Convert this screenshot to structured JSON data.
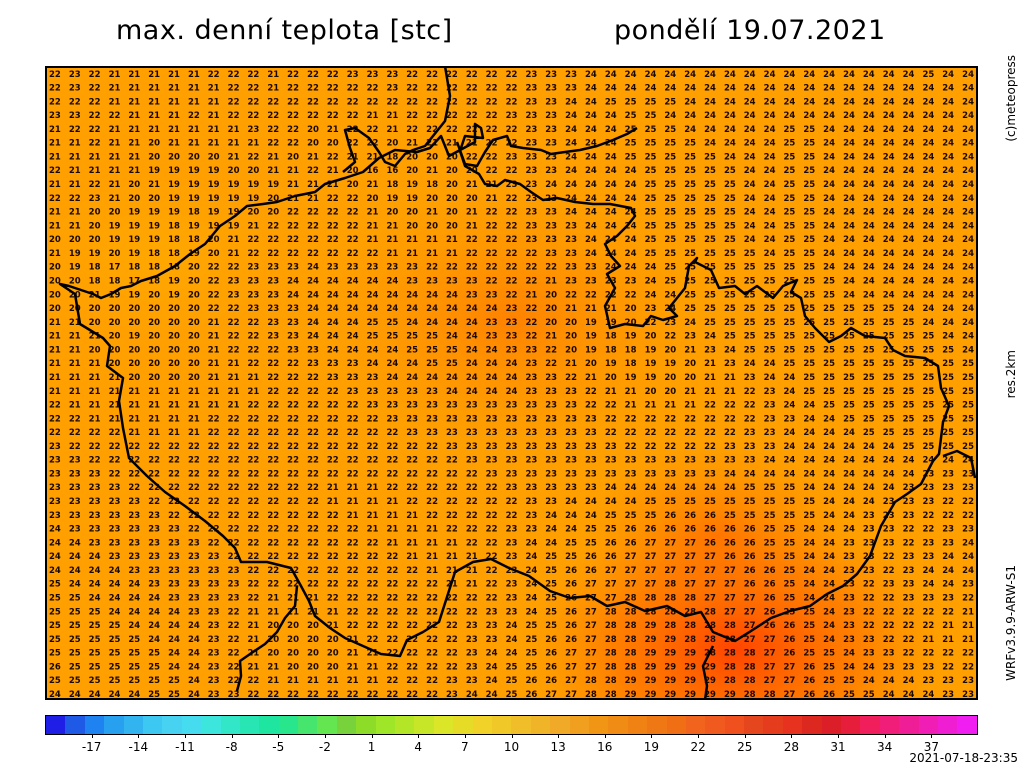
{
  "header": {
    "title": "max. denní teplota [stc]",
    "date": "pondělí 19.07.2021"
  },
  "side_labels": {
    "copyright": "(c)meteopress",
    "resolution": "res.2km",
    "model": "WRFv3.9.9-ARW-S1"
  },
  "footer": {
    "run_timestamp": "2021-07-18-23:35"
  },
  "colors": {
    "base_field": "#ff9f00",
    "hot_field": "#ff4a00",
    "border_line": "#000000"
  },
  "colorbar": {
    "tick_labels": [
      "-17",
      "-14",
      "-11",
      "-8",
      "-5",
      "-2",
      "1",
      "4",
      "7",
      "10",
      "13",
      "16",
      "19",
      "22",
      "25",
      "28",
      "31",
      "34",
      "37"
    ],
    "range": [
      -20,
      40
    ],
    "colors": [
      "#1e1ee6",
      "#1e5ae6",
      "#1e82f0",
      "#28a0f0",
      "#32b4f0",
      "#3cc8f0",
      "#46d2f0",
      "#46dcf0",
      "#3ce6dc",
      "#32e6c8",
      "#28e6b4",
      "#1ee6a0",
      "#28e68c",
      "#46e66e",
      "#64e650",
      "#78d23c",
      "#8cdc28",
      "#a0e628",
      "#b4e628",
      "#c8e628",
      "#dce628",
      "#e6dc28",
      "#f0d228",
      "#f0c828",
      "#f0be28",
      "#f0b428",
      "#f0aa28",
      "#f0a01e",
      "#f09614",
      "#f08c14",
      "#f08214",
      "#f07814",
      "#f06e14",
      "#f0641e",
      "#f05a1e",
      "#f0501e",
      "#e6461e",
      "#e63c1e",
      "#e6321e",
      "#dc281e",
      "#dc1e28",
      "#e61e3c",
      "#f01e5a",
      "#f01e78",
      "#f01e96",
      "#f01eb4",
      "#f01ed2",
      "#f01ef0"
    ]
  },
  "map_data": {
    "type": "temperature_grid",
    "unit": "stc",
    "rows": [
      "22 23 22 21 21 21 21 21 22 22 22 21 22 22 22 23 23 23 22 22 22 22 22 22 23 23 23 24 24 24 24 24 24 24 24 24 24 24 24 24 24 24 24 24 25 24 24",
      "22 23 22 21 21 21 21 21 21 22 22 21 22 22 22 22 22 23 22 22 22 22 22 22 23 23 23 24 24 24 24 24 24 24 24 24 24 24 24 24 24 24 24 24 24 24 24",
      "22 22 22 21 21 21 21 21 21 22 22 22 22 22 22 22 22 22 22 22 22 22 22 22 23 23 24 24 25 25 25 25 24 24 24 24 24 24 24 24 24 24 24 24 24 24 24",
      "23 23 22 22 21 21 21 22 21 22 22 22 22 22 22 22 21 21 22 22 22 22 22 23 23 23 24 24 24 25 25 24 24 24 24 24 24 24 24 24 24 24 24 24 24 24 24",
      "21 22 22 21 21 21 21 21 21 21 23 22 22 20 21 22 22 21 22 22 22 22 22 22 23 23 24 24 24 25 25 25 24 24 24 24 24 25 25 24 24 24 24 24 24 24 24",
      "21 21 22 21 21 20 21 21 21 21 21 22 22 20 20 22 22 20 21 21 21 21 22 22 23 23 24 24 24 25 25 25 25 24 24 24 24 25 25 24 24 24 24 24 24 24 24",
      "21 21 21 21 21 20 20 20 20 21 22 21 20 21 22 21 21 18 20 20 20 22 22 23 23 23 24 24 24 25 25 25 25 25 24 24 24 25 25 24 24 24 24 24 24 24 24",
      "22 21 21 21 21 19 19 19 19 20 20 21 21 22 21 20 16 16 20 21 20 20 22 22 23 23 24 24 24 24 25 25 25 25 25 24 24 25 25 24 24 24 24 24 24 24 24",
      "21 21 22 21 20 21 19 19 19 19 19 19 21 21 21 20 21 18 19 18 20 21 21 23 23 24 24 24 24 24 25 25 25 25 25 24 24 25 25 24 24 24 24 24 24 24 24",
      "22 22 23 21 20 20 19 19 19 19 19 20 21 21 22 22 20 19 19 20 20 20 21 22 23 23 24 24 24 24 25 25 25 25 25 24 24 25 25 24 24 24 24 24 24 24 24",
      "21 21 20 20 19 19 19 18 19 19 20 20 22 22 22 22 21 20 20 21 20 21 22 22 23 23 24 24 24 24 25 25 25 25 25 24 24 25 25 24 24 24 24 24 24 24 24",
      "21 21 20 19 19 19 18 19 19 19 21 22 22 22 22 22 21 21 20 20 20 21 22 22 23 23 23 24 24 24 25 25 25 25 25 24 24 25 25 24 24 24 24 24 24 24 24",
      "20 20 20 19 19 19 18 18 20 21 22 22 22 22 22 22 21 21 21 21 21 22 22 22 23 23 23 24 24 24 25 25 25 25 25 24 24 25 25 24 24 24 24 24 24 24 24",
      "21 19 19 20 19 18 18 19 20 21 22 22 22 22 22 22 22 21 21 21 21 22 22 22 22 23 23 24 24 24 25 25 25 25 25 25 24 25 25 24 24 24 24 24 24 24 24",
      "20 19 18 17 18 18 18 20 22 22 23 23 23 24 23 23 23 23 23 22 22 22 22 22 22 22 23 23 24 24 24 25 25 25 25 25 25 25 25 24 24 24 24 24 24 24 24",
      "20 20 18 18 17 18 19 20 22 23 23 23 24 24 24 24 24 24 23 23 23 23 22 22 22 21 23 23 23 23 24 25 25 25 25 25 25 25 25 25 24 24 24 24 24 24 24",
      "20 20 21 19 19 20 19 20 22 23 23 23 24 24 24 24 24 24 24 24 24 23 23 22 21 20 22 22 22 22 24 24 25 25 25 25 25 25 25 25 24 24 24 24 24 24 24",
      "20 20 20 20 20 20 20 20 22 22 23 23 23 24 24 24 24 24 24 24 24 24 24 23 22 20 21 21 21 20 23 24 25 25 25 25 25 25 25 25 25 25 25 24 24 24 24",
      "21 21 20 20 20 20 20 20 21 22 22 23 23 24 24 24 25 25 24 24 24 24 23 23 22 20 20 19 19 20 22 23 24 25 25 25 25 25 25 25 25 25 25 25 24 24 24",
      "21 21 21 20 19 20 20 20 21 22 22 23 23 24 24 24 25 25 25 25 24 24 23 23 22 21 20 19 18 19 20 22 23 24 25 25 25 25 25 25 25 25 25 25 25 24 24",
      "21 21 20 20 20 20 20 20 21 22 22 22 23 23 24 24 24 24 25 25 25 24 24 23 23 22 20 19 18 18 19 20 21 23 24 25 25 25 25 25 25 25 25 25 25 25 24",
      "21 21 21 20 20 20 20 20 21 21 22 22 22 23 23 23 24 24 24 25 25 24 24 24 23 22 21 20 19 18 19 19 20 21 23 24 24 25 25 25 25 25 25 25 25 25 25",
      "21 21 21 21 20 20 20 20 21 21 21 22 22 22 23 23 23 24 24 24 24 24 24 24 23 23 22 21 20 19 19 20 20 21 21 23 24 24 25 25 25 25 25 25 25 25 25",
      "21 21 21 21 21 21 21 21 21 21 21 22 22 22 22 23 23 23 23 23 24 24 24 24 23 23 23 22 21 21 20 20 21 21 21 22 23 24 25 25 25 25 25 25 25 25 25",
      "22 21 21 21 21 21 21 21 21 21 22 22 22 22 22 22 23 23 23 23 23 23 23 23 23 23 23 22 22 21 21 21 21 22 22 22 23 24 24 25 25 25 25 25 25 25 25",
      "22 22 21 21 21 21 21 21 22 22 22 22 22 22 22 22 22 23 23 23 23 23 23 23 23 23 23 23 22 22 22 22 22 22 22 22 23 23 24 24 25 25 25 25 25 25 25",
      "22 22 22 22 21 21 21 21 22 22 22 22 22 22 22 22 22 22 23 23 23 23 23 23 23 23 23 23 22 22 22 22 22 22 22 23 23 24 24 24 24 25 25 25 25 25 25",
      "23 22 22 22 22 22 22 22 22 22 22 22 22 22 22 22 22 22 22 22 23 23 23 23 23 23 23 23 23 22 22 22 22 22 23 23 23 24 24 24 24 24 24 25 25 25 25",
      "23 23 22 22 22 22 22 22 22 22 22 22 22 22 22 22 22 22 22 22 22 23 23 23 23 23 23 23 23 23 23 23 23 23 23 23 24 24 24 24 24 24 24 24 24 24 24",
      "23 23 23 22 22 22 22 22 22 22 22 22 22 22 22 22 22 22 22 22 22 22 23 23 23 23 23 23 23 23 23 23 23 23 24 24 24 24 24 24 24 24 24 24 23 23 23",
      "23 23 23 23 22 22 22 22 22 22 22 22 22 22 21 21 21 22 22 22 22 22 22 23 23 23 23 23 24 24 24 24 24 24 24 25 25 25 24 24 24 24 24 23 23 23 23",
      "23 23 23 23 23 22 22 22 22 22 22 22 22 22 21 21 21 21 22 22 22 22 22 22 23 23 24 24 24 24 25 25 25 25 25 25 25 25 25 24 24 24 23 23 23 22 22",
      "23 23 23 23 23 23 22 22 22 22 22 22 22 22 22 21 21 21 21 22 22 22 22 22 23 24 24 24 25 25 25 26 26 26 25 25 25 25 25 24 24 23 23 23 22 22 22",
      "24 23 23 23 23 23 23 22 22 22 22 22 22 22 22 22 21 21 21 21 22 22 22 23 23 24 24 25 25 26 26 26 26 26 26 26 25 25 24 24 24 23 23 22 22 23 23",
      "24 24 23 23 23 23 23 23 22 22 22 22 22 22 22 22 22 21 21 21 21 22 22 23 24 24 25 25 26 26 27 27 27 26 26 26 25 25 24 24 23 23 23 22 23 23 24",
      "24 24 24 23 23 23 23 23 23 22 22 22 22 22 22 22 22 22 21 21 21 21 22 23 24 25 25 26 26 27 27 27 27 27 26 26 25 25 24 24 23 23 22 23 23 24 24",
      "24 24 24 24 23 23 23 23 23 23 22 22 22 22 22 22 22 22 22 21 21 21 22 23 24 25 26 26 27 27 27 27 27 27 27 26 26 25 24 24 23 23 22 23 24 24 24",
      "25 24 24 24 24 23 23 23 23 23 22 22 22 22 22 22 22 22 22 22 21 21 22 23 24 25 26 27 27 27 27 28 27 27 27 26 26 25 24 24 23 22 23 23 24 24 23",
      "25 25 24 24 24 24 23 23 23 23 22 21 21 21 22 22 22 22 22 22 22 22 22 23 24 25 26 27 27 28 28 28 28 27 27 27 26 25 24 24 23 22 22 23 23 23 22",
      "25 25 25 24 24 24 24 23 23 22 21 21 21 21 21 22 22 22 22 22 22 22 23 23 24 25 26 27 28 28 28 28 28 28 27 27 26 25 25 24 23 22 22 22 22 22 21",
      "25 25 25 25 24 24 24 24 23 22 21 20 20 20 21 22 22 22 22 22 22 23 23 24 25 25 26 27 28 28 29 28 28 28 28 27 26 26 25 24 23 22 22 22 22 21 21",
      "25 25 25 25 25 24 24 24 23 22 21 20 20 20 20 21 22 22 22 22 22 23 23 24 25 26 26 27 28 28 29 29 28 28 28 27 27 26 25 24 23 23 22 22 21 21 21",
      "25 25 25 25 25 25 24 24 23 22 21 20 20 20 20 21 21 22 22 22 22 23 24 24 25 26 27 27 28 28 29 29 29 28 28 28 27 26 25 25 24 23 23 22 22 22 22",
      "26 25 25 25 25 25 24 24 23 22 21 21 20 20 20 21 21 22 22 22 22 23 24 25 25 26 27 27 28 28 29 29 29 29 28 28 27 27 26 25 24 24 23 23 23 22 22",
      "25 25 25 25 25 25 25 24 23 22 22 21 21 21 21 21 21 22 22 22 23 23 24 25 26 26 27 28 28 29 29 29 29 29 28 28 27 27 26 25 25 24 24 24 23 23 23",
      "24 24 24 24 24 25 25 24 23 23 22 22 22 22 22 22 22 22 22 22 23 24 24 25 26 27 27 28 28 29 29 29 29 29 29 28 28 27 26 26 25 25 24 24 24 23 23"
    ],
    "hot_spots": [
      {
        "lon": 0.72,
        "lat": 0.12,
        "temp": 29,
        "spread": 0.2
      },
      {
        "lon": 0.55,
        "lat": 0.55,
        "temp": 25,
        "spread": 0.18
      },
      {
        "lon": 0.82,
        "lat": 0.35,
        "temp": 26,
        "spread": 0.15
      }
    ]
  }
}
